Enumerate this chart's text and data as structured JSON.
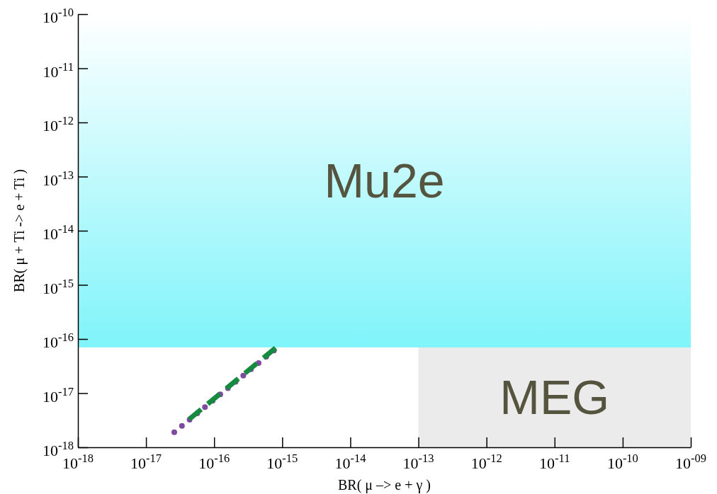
{
  "chart_data": {
    "type": "line",
    "xlabel": "BR( μ –> e + γ )",
    "ylabel": "BR( μ + Ti -> e + Ti )",
    "log": "xy",
    "xlim": [
      1e-18,
      1e-09
    ],
    "xticks": [
      {
        "value": 1e-18,
        "label": "10$^{-18}$"
      },
      {
        "value": 1e-17,
        "label": "10$^{-17}$"
      },
      {
        "value": 1e-16,
        "label": "10$^{-16}$"
      },
      {
        "value": 1e-15,
        "label": "10$^{-15}$"
      },
      {
        "value": 1e-14,
        "label": "10$^{-14}$"
      },
      {
        "value": 1e-13,
        "label": "10$^{-13}$"
      },
      {
        "value": 1e-12,
        "label": "10$^{-12}$"
      },
      {
        "value": 1e-11,
        "label": "10$^{-11}$"
      },
      {
        "value": 1e-10,
        "label": "10$^{-10}$"
      },
      {
        "value": 1e-09,
        "label": "10$^{-09}$"
      }
    ],
    "ylim": [
      1e-18,
      1e-10
    ],
    "yticks": [
      {
        "value": 1e-18,
        "label": "10$^{-18}$"
      },
      {
        "value": 1e-17,
        "label": "10$^{-17}$"
      },
      {
        "value": 1e-16,
        "label": "10$^{-16}$"
      },
      {
        "value": 1e-15,
        "label": "10$^{-15}$"
      },
      {
        "value": 1e-14,
        "label": "10$^{-14}$"
      },
      {
        "value": 1e-13,
        "label": "10$^{-13}$"
      },
      {
        "value": 1e-12,
        "label": "10$^{-12}$"
      },
      {
        "value": 1e-11,
        "label": "10$^{-11}$"
      },
      {
        "value": 1e-10,
        "label": "10$^{-10}$"
      }
    ],
    "bands": [
      {
        "axis": "x",
        "from": 1e-13,
        "to": 1e-09,
        "label": "MEG",
        "color": "#ebebeb"
      },
      {
        "axis": "y",
        "from": 7e-17,
        "to": 1e-10,
        "label": "Mu2e",
        "color": "#7ff4fa"
      }
    ],
    "series": [
      {
        "color": "#7d4a9e",
        "line_style": "dotted",
        "x": [
          2.6e-17,
          8.8e-16
        ],
        "values": [
          1.9e-18,
          7.2e-17
        ]
      },
      {
        "color": "#168a3e",
        "line_style": "dashed",
        "x": [
          4.3e-17,
          8.4e-16
        ],
        "values": [
          3.3e-18,
          7.2e-17
        ]
      }
    ]
  }
}
